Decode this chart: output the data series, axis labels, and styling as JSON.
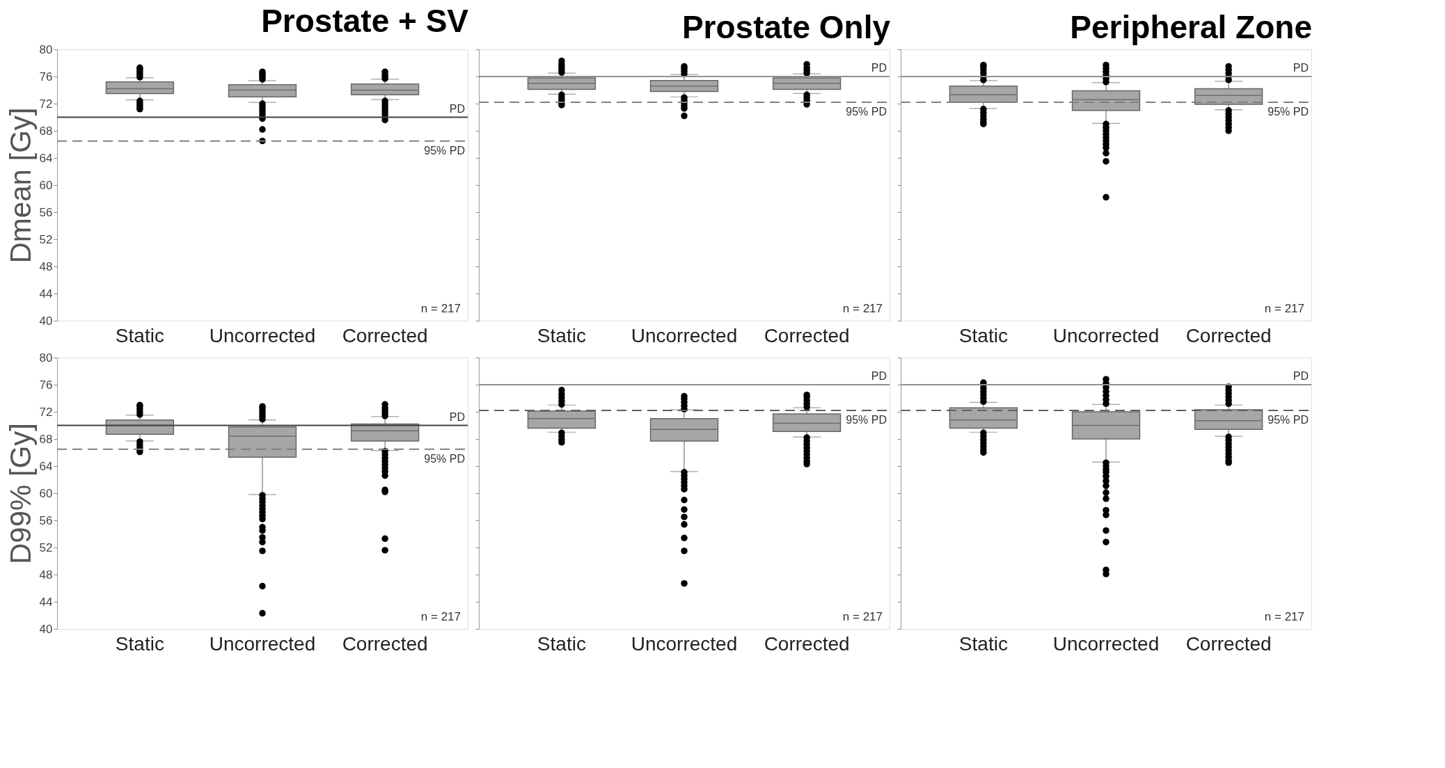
{
  "chart_data": [
    {
      "type": "box",
      "title": "Prostate + SV",
      "ylabel": "Dmean [Gy]",
      "categories": [
        "Static",
        "Uncorrected",
        "Corrected"
      ],
      "ylim": [
        40,
        80
      ],
      "yticks": [
        40,
        44,
        48,
        52,
        56,
        60,
        64,
        68,
        72,
        76,
        80
      ],
      "color": "#a6a6a6",
      "grid": false,
      "boxes": [
        {
          "low": 72.55,
          "q1": 73.5,
          "median": 74.2,
          "q3": 75.2,
          "high": 75.8,
          "outliers": [
            75.9,
            76.2,
            76.5,
            76.8,
            77.1,
            77.3,
            72.4,
            72.1,
            71.8,
            71.5,
            71.2
          ]
        },
        {
          "low": 72.2,
          "q1": 73.0,
          "median": 74.0,
          "q3": 74.8,
          "high": 75.4,
          "outliers": [
            75.6,
            75.9,
            76.2,
            76.5,
            76.7,
            72.0,
            71.6,
            71.2,
            70.8,
            70.4,
            70.0,
            69.8,
            68.2,
            66.5
          ]
        },
        {
          "low": 72.6,
          "q1": 73.3,
          "median": 74.0,
          "q3": 74.9,
          "high": 75.6,
          "outliers": [
            75.7,
            76.0,
            76.3,
            76.7,
            72.4,
            72.0,
            71.6,
            71.2,
            70.8,
            70.4,
            70.0,
            69.6
          ]
        }
      ],
      "ref_lines": [
        {
          "axis": "y",
          "value": 70,
          "label": "PD",
          "color": "#404040",
          "line_style": "solid"
        },
        {
          "axis": "y",
          "value": 66.5,
          "label": "95% PD",
          "color": "#808080",
          "line_style": "dashed"
        }
      ],
      "annotations": [
        "n = 217"
      ]
    },
    {
      "type": "box",
      "title": "Prostate Only",
      "categories": [
        "Static",
        "Uncorrected",
        "Corrected"
      ],
      "ylim": [
        40,
        80
      ],
      "yticks": [
        40,
        44,
        48,
        52,
        56,
        60,
        64,
        68,
        72,
        76,
        80
      ],
      "tick_labels": "x",
      "color": "#a6a6a6",
      "grid": false,
      "boxes": [
        {
          "low": 73.4,
          "q1": 74.1,
          "median": 75.0,
          "q3": 75.8,
          "high": 76.5,
          "outliers": [
            76.6,
            77.0,
            77.4,
            77.8,
            78.3,
            73.3,
            72.9,
            72.5,
            72.1,
            71.8
          ]
        },
        {
          "low": 73.0,
          "q1": 73.8,
          "median": 74.6,
          "q3": 75.4,
          "high": 76.3,
          "outliers": [
            76.4,
            76.8,
            77.2,
            77.5,
            72.9,
            72.5,
            72.1,
            71.7,
            71.3,
            70.2
          ]
        },
        {
          "low": 73.5,
          "q1": 74.1,
          "median": 75.0,
          "q3": 75.8,
          "high": 76.4,
          "outliers": [
            76.5,
            76.9,
            77.3,
            77.8,
            73.3,
            72.9,
            72.5,
            72.2,
            71.9
          ]
        }
      ],
      "ref_lines": [
        {
          "axis": "y",
          "value": 76,
          "label": "PD",
          "color": "#909090",
          "line_style": "solid"
        },
        {
          "axis": "y",
          "value": 72.2,
          "label": "95% PD",
          "color": "#808080",
          "line_style": "dashed"
        }
      ],
      "annotations": [
        "n = 217"
      ]
    },
    {
      "type": "box",
      "title": "Peripheral Zone",
      "categories": [
        "Static",
        "Uncorrected",
        "Corrected"
      ],
      "ylim": [
        40,
        80
      ],
      "yticks": [
        40,
        44,
        48,
        52,
        56,
        60,
        64,
        68,
        72,
        76,
        80
      ],
      "tick_labels": "x",
      "color": "#a6a6a6",
      "grid": false,
      "boxes": [
        {
          "low": 71.3,
          "q1": 72.2,
          "median": 73.3,
          "q3": 74.6,
          "high": 75.4,
          "outliers": [
            75.5,
            76.0,
            76.5,
            77.0,
            77.4,
            77.7,
            71.2,
            70.7,
            70.2,
            69.7,
            69.3,
            69.0
          ]
        },
        {
          "low": 69.1,
          "q1": 71.0,
          "median": 72.6,
          "q3": 73.9,
          "high": 75.1,
          "outliers": [
            75.2,
            75.7,
            76.2,
            76.7,
            77.2,
            77.7,
            69.0,
            68.5,
            68.0,
            67.5,
            67.0,
            66.5,
            66.0,
            65.5,
            64.7,
            63.5,
            58.2
          ]
        },
        {
          "low": 71.1,
          "q1": 71.9,
          "median": 73.2,
          "q3": 74.2,
          "high": 75.3,
          "outliers": [
            75.5,
            76.0,
            76.5,
            77.0,
            77.5,
            71.0,
            70.5,
            70.0,
            69.5,
            69.0,
            68.5,
            68.0
          ]
        }
      ],
      "ref_lines": [
        {
          "axis": "y",
          "value": 76,
          "label": "PD",
          "color": "#909090",
          "line_style": "solid"
        },
        {
          "axis": "y",
          "value": 72.2,
          "label": "95% PD",
          "color": "#808080",
          "line_style": "dashed"
        }
      ],
      "annotations": [
        "n = 217"
      ]
    },
    {
      "type": "box",
      "ylabel": "D99% [Gy]",
      "categories": [
        "Static",
        "Uncorrected",
        "Corrected"
      ],
      "ylim": [
        40,
        80
      ],
      "yticks": [
        40,
        44,
        48,
        52,
        56,
        60,
        64,
        68,
        72,
        76,
        80
      ],
      "color": "#a6a6a6",
      "grid": false,
      "boxes": [
        {
          "low": 67.7,
          "q1": 68.7,
          "median": 70.0,
          "q3": 70.8,
          "high": 71.5,
          "outliers": [
            71.6,
            72.0,
            72.4,
            72.8,
            73.0,
            67.6,
            67.2,
            66.8,
            66.4,
            66.1
          ]
        },
        {
          "low": 59.8,
          "q1": 65.3,
          "median": 68.4,
          "q3": 69.8,
          "high": 70.8,
          "outliers": [
            70.9,
            71.3,
            71.7,
            72.1,
            72.5,
            72.8,
            59.7,
            59.2,
            58.7,
            58.2,
            57.7,
            57.2,
            56.7,
            56.2,
            55.0,
            54.5,
            53.5,
            52.8,
            51.5,
            46.3,
            42.3
          ]
        },
        {
          "low": 66.3,
          "q1": 67.7,
          "median": 69.2,
          "q3": 70.2,
          "high": 71.3,
          "outliers": [
            71.4,
            71.8,
            72.2,
            72.6,
            73.1,
            66.2,
            65.7,
            65.2,
            64.7,
            64.2,
            63.7,
            63.2,
            62.6,
            60.5,
            60.2,
            53.3,
            51.6
          ]
        }
      ],
      "ref_lines": [
        {
          "axis": "y",
          "value": 70,
          "label": "PD",
          "color": "#404040",
          "line_style": "solid"
        },
        {
          "axis": "y",
          "value": 66.5,
          "label": "95% PD",
          "color": "#808080",
          "line_style": "dashed"
        }
      ],
      "annotations": [
        "n = 217"
      ]
    },
    {
      "type": "box",
      "categories": [
        "Static",
        "Uncorrected",
        "Corrected"
      ],
      "ylim": [
        40,
        80
      ],
      "yticks": [
        40,
        44,
        48,
        52,
        56,
        60,
        64,
        68,
        72,
        76,
        80
      ],
      "tick_labels": "x",
      "color": "#a6a6a6",
      "grid": false,
      "boxes": [
        {
          "low": 69.0,
          "q1": 69.6,
          "median": 71.0,
          "q3": 72.1,
          "high": 73.0,
          "outliers": [
            73.1,
            73.6,
            74.1,
            74.6,
            75.2,
            68.9,
            68.4,
            67.9,
            67.5
          ]
        },
        {
          "low": 63.2,
          "q1": 67.7,
          "median": 69.4,
          "q3": 71.0,
          "high": 72.3,
          "outliers": [
            72.4,
            72.9,
            73.4,
            73.9,
            74.3,
            63.1,
            62.6,
            62.1,
            61.6,
            61.1,
            60.6,
            59.0,
            57.6,
            56.5,
            55.4,
            53.4,
            51.5,
            46.7
          ]
        },
        {
          "low": 68.3,
          "q1": 69.1,
          "median": 70.3,
          "q3": 71.7,
          "high": 72.6,
          "outliers": [
            72.7,
            73.2,
            73.7,
            74.2,
            74.5,
            68.2,
            67.7,
            67.2,
            66.7,
            66.2,
            65.7,
            65.2,
            64.7,
            64.3
          ]
        }
      ],
      "ref_lines": [
        {
          "axis": "y",
          "value": 76,
          "label": "PD",
          "color": "#909090",
          "line_style": "solid"
        },
        {
          "axis": "y",
          "value": 72.2,
          "label": "95% PD",
          "color": "#606060",
          "line_style": "dashed"
        }
      ],
      "annotations": [
        "n = 217"
      ]
    },
    {
      "type": "box",
      "categories": [
        "Static",
        "Uncorrected",
        "Corrected"
      ],
      "ylim": [
        40,
        80
      ],
      "yticks": [
        40,
        44,
        48,
        52,
        56,
        60,
        64,
        68,
        72,
        76,
        80
      ],
      "tick_labels": "x",
      "color": "#a6a6a6",
      "grid": false,
      "boxes": [
        {
          "low": 69.0,
          "q1": 69.6,
          "median": 70.8,
          "q3": 72.6,
          "high": 73.4,
          "outliers": [
            73.5,
            74.0,
            74.5,
            75.0,
            75.5,
            76.0,
            76.3,
            68.9,
            68.4,
            67.9,
            67.4,
            66.9,
            66.4,
            66.0
          ]
        },
        {
          "low": 64.6,
          "q1": 68.0,
          "median": 70.0,
          "q3": 72.0,
          "high": 73.1,
          "outliers": [
            73.2,
            73.8,
            74.4,
            75.0,
            75.6,
            76.2,
            76.8,
            64.5,
            64.0,
            63.5,
            63.1,
            62.5,
            61.8,
            61.1,
            60.1,
            59.2,
            57.5,
            56.8,
            54.5,
            52.8,
            48.7,
            48.1
          ]
        },
        {
          "low": 68.4,
          "q1": 69.4,
          "median": 70.7,
          "q3": 72.3,
          "high": 73.0,
          "outliers": [
            73.2,
            73.7,
            74.2,
            74.7,
            75.2,
            75.7,
            68.3,
            67.8,
            67.3,
            66.8,
            66.3,
            65.8,
            65.3,
            64.8,
            64.5
          ]
        }
      ],
      "ref_lines": [
        {
          "axis": "y",
          "value": 76,
          "label": "PD",
          "color": "#909090",
          "line_style": "solid"
        },
        {
          "axis": "y",
          "value": 72.2,
          "label": "95% PD",
          "color": "#606060",
          "line_style": "dashed"
        }
      ],
      "annotations": [
        "n = 217"
      ]
    }
  ]
}
